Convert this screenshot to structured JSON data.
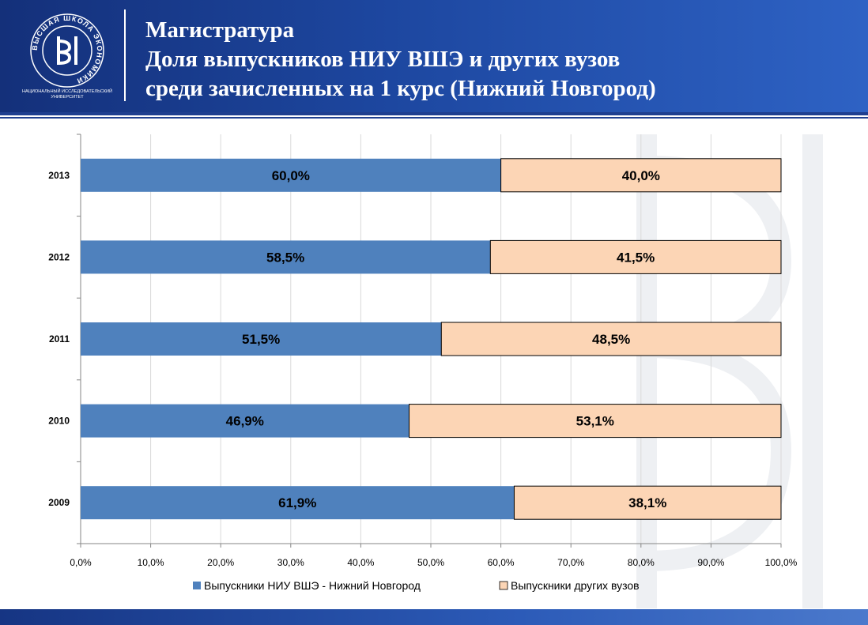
{
  "header": {
    "title_line1": "Магистратура",
    "title_line2": "Доля выпускников  НИУ ВШЭ и других вузов",
    "title_line3": "среди зачисленных на 1 курс (Нижний Новгород)",
    "logo_ring_text": "ВЫСШАЯ ШКОЛА ЭКОНОМИКИ",
    "logo_caption_line1": "НАЦИОНАЛЬНЫЙ ИССЛЕДОВАТЕЛЬСКИЙ",
    "logo_caption_line2": "УНИВЕРСИТЕТ"
  },
  "colors": {
    "header_blue": "#1d47a0",
    "series_hse": "#4f81bd",
    "series_other": "#fcd5b5",
    "grid": "#d9d9d9"
  },
  "chart_data": {
    "type": "bar",
    "orientation": "horizontal",
    "stacked": "percent",
    "categories": [
      "2013",
      "2012",
      "2011",
      "2010",
      "2009"
    ],
    "series": [
      {
        "name": "Выпускники НИУ ВШЭ - Нижний Новгород",
        "values": [
          60.0,
          58.5,
          51.5,
          46.9,
          61.9
        ],
        "labels": [
          "60,0%",
          "58,5%",
          "51,5%",
          "46,9%",
          "61,9%"
        ]
      },
      {
        "name": "Выпускники других вузов",
        "values": [
          40.0,
          41.5,
          48.5,
          53.1,
          38.1
        ],
        "labels": [
          "40,0%",
          "41,5%",
          "48,5%",
          "53,1%",
          "38,1%"
        ]
      }
    ],
    "xlim": [
      0,
      100
    ],
    "xticks": [
      0,
      10,
      20,
      30,
      40,
      50,
      60,
      70,
      80,
      90,
      100
    ],
    "xtick_labels": [
      "0,0%",
      "10,0%",
      "20,0%",
      "30,0%",
      "40,0%",
      "50,0%",
      "60,0%",
      "70,0%",
      "80,0%",
      "90,0%",
      "100,0%"
    ],
    "grid": true,
    "legend": "bottom"
  }
}
